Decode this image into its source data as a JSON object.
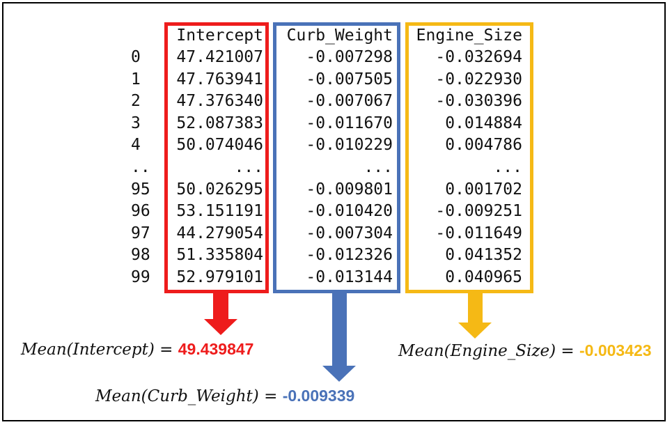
{
  "table": {
    "columns": [
      "Intercept",
      "Curb_Weight",
      "Engine_Size"
    ],
    "rows": [
      {
        "index": "0",
        "values": [
          "47.421007",
          "-0.007298",
          "-0.032694"
        ]
      },
      {
        "index": "1",
        "values": [
          "47.763941",
          "-0.007505",
          "-0.022930"
        ]
      },
      {
        "index": "2",
        "values": [
          "47.376340",
          "-0.007067",
          "-0.030396"
        ]
      },
      {
        "index": "3",
        "values": [
          "52.087383",
          "-0.011670",
          "0.014884"
        ]
      },
      {
        "index": "4",
        "values": [
          "50.074046",
          "-0.010229",
          "0.004786"
        ]
      },
      {
        "index": "..",
        "values": [
          "...",
          "...",
          "..."
        ]
      },
      {
        "index": "95",
        "values": [
          "50.026295",
          "-0.009801",
          "0.001702"
        ]
      },
      {
        "index": "96",
        "values": [
          "53.151191",
          "-0.010420",
          "-0.009251"
        ]
      },
      {
        "index": "97",
        "values": [
          "44.279054",
          "-0.007304",
          "-0.011649"
        ]
      },
      {
        "index": "98",
        "values": [
          "51.335804",
          "-0.012326",
          "0.041352"
        ]
      },
      {
        "index": "99",
        "values": [
          "52.979101",
          "-0.013144",
          "0.040965"
        ]
      }
    ]
  },
  "means": [
    {
      "label": "Mean(Intercept)",
      "equals": " = ",
      "value": "49.439847",
      "color": "#ee1c1c"
    },
    {
      "label": "Mean(Curb_Weight)",
      "equals": " = ",
      "value": "-0.009339",
      "color": "#4a72b8"
    },
    {
      "label": "Mean(Engine_Size)",
      "equals": " = ",
      "value": "-0.003423",
      "color": "#f5b915"
    }
  ]
}
